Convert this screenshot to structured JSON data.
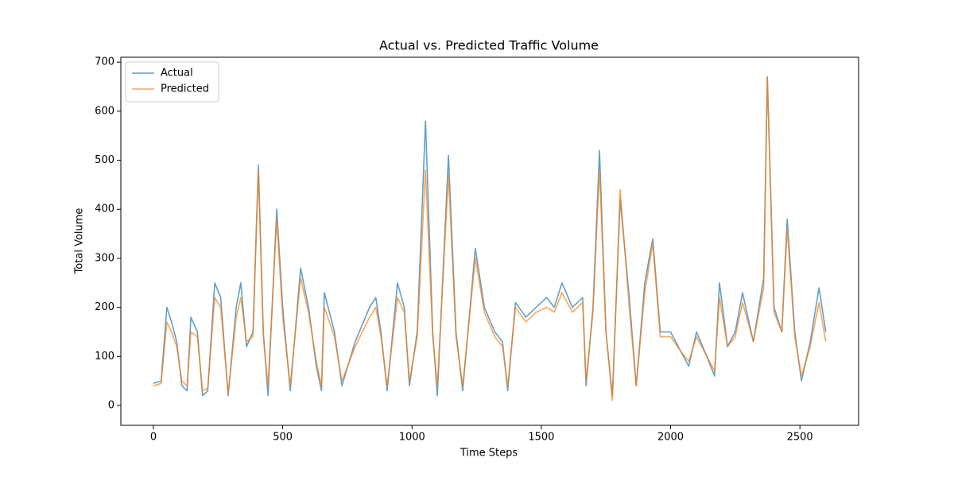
{
  "chart_data": {
    "type": "line",
    "title": "Actual vs. Predicted Traffic Volume",
    "x_label": "Time Steps",
    "y_label": "Total Volume",
    "x": [
      0,
      30,
      52,
      70,
      90,
      110,
      130,
      145,
      170,
      190,
      210,
      237,
      260,
      289,
      320,
      338,
      360,
      385,
      406,
      425,
      443,
      477,
      500,
      529,
      569,
      600,
      630,
      650,
      661,
      700,
      729,
      780,
      836,
      860,
      880,
      904,
      944,
      970,
      990,
      1020,
      1052,
      1080,
      1098,
      1141,
      1170,
      1196,
      1245,
      1280,
      1320,
      1350,
      1370,
      1400,
      1440,
      1480,
      1520,
      1550,
      1580,
      1620,
      1660,
      1673,
      1700,
      1725,
      1750,
      1775,
      1805,
      1840,
      1867,
      1900,
      1931,
      1960,
      2000,
      2040,
      2070,
      2100,
      2140,
      2170,
      2189,
      2220,
      2250,
      2278,
      2320,
      2360,
      2374,
      2400,
      2430,
      2451,
      2480,
      2506,
      2540,
      2574,
      2600
    ],
    "series": [
      {
        "name": "Actual",
        "color": "#1f77b4",
        "values": [
          45,
          50,
          200,
          170,
          130,
          40,
          30,
          180,
          150,
          20,
          30,
          250,
          220,
          20,
          200,
          250,
          120,
          150,
          490,
          150,
          20,
          400,
          200,
          30,
          280,
          200,
          80,
          30,
          230,
          150,
          40,
          130,
          200,
          220,
          150,
          30,
          250,
          200,
          40,
          150,
          580,
          150,
          20,
          510,
          150,
          30,
          320,
          200,
          150,
          130,
          30,
          210,
          180,
          200,
          220,
          200,
          250,
          200,
          220,
          40,
          200,
          520,
          150,
          20,
          420,
          220,
          40,
          250,
          340,
          150,
          150,
          110,
          80,
          150,
          100,
          60,
          250,
          120,
          150,
          230,
          130,
          260,
          670,
          200,
          150,
          380,
          150,
          50,
          130,
          240,
          150
        ]
      },
      {
        "name": "Predicted",
        "color": "#ff7f0e",
        "values": [
          40,
          45,
          170,
          150,
          120,
          50,
          40,
          150,
          140,
          30,
          35,
          220,
          200,
          25,
          180,
          220,
          130,
          140,
          480,
          140,
          40,
          380,
          180,
          40,
          260,
          190,
          90,
          40,
          200,
          140,
          50,
          120,
          180,
          200,
          140,
          40,
          220,
          190,
          50,
          140,
          480,
          140,
          40,
          470,
          140,
          40,
          300,
          190,
          140,
          120,
          40,
          200,
          170,
          190,
          200,
          190,
          230,
          190,
          210,
          50,
          190,
          480,
          150,
          10,
          440,
          200,
          40,
          230,
          330,
          140,
          140,
          110,
          90,
          140,
          100,
          70,
          220,
          120,
          140,
          210,
          130,
          240,
          670,
          190,
          150,
          360,
          140,
          60,
          120,
          210,
          130
        ]
      }
    ],
    "xlim": [
      -126,
      2727
    ],
    "ylim": [
      -40.5,
      710
    ],
    "xticks": [
      0,
      500,
      1000,
      1500,
      2000,
      2500
    ],
    "yticks": [
      0,
      100,
      200,
      300,
      400,
      500,
      600,
      700
    ],
    "legend": "upper left",
    "grid": false
  }
}
